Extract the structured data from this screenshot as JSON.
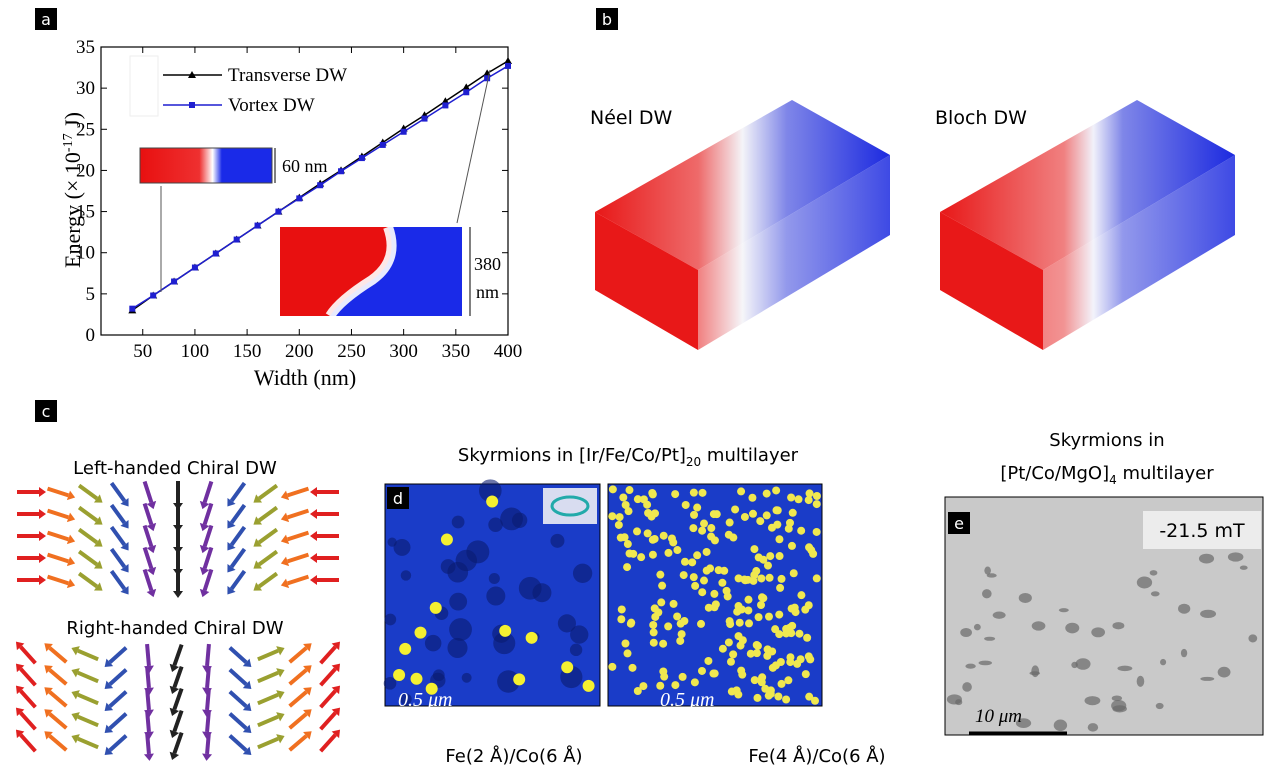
{
  "chart_data": {
    "type": "line",
    "panel_label": "a",
    "xlabel": "Width (nm)",
    "ylabel": [
      "Energy (× 10",
      "-17",
      " J)"
    ],
    "x": [
      40,
      60,
      80,
      100,
      120,
      140,
      160,
      180,
      200,
      220,
      240,
      260,
      280,
      300,
      320,
      340,
      360,
      380,
      400
    ],
    "series": [
      {
        "name": "Transverse DW",
        "color": "#000000",
        "marker": "triangle",
        "values": [
          3.0,
          4.8,
          6.5,
          8.2,
          9.9,
          11.6,
          13.3,
          15.0,
          16.7,
          18.4,
          20.0,
          21.7,
          23.4,
          25.1,
          26.7,
          28.4,
          30.1,
          31.8,
          33.3
        ]
      },
      {
        "name": "Vortex DW",
        "color": "#1f1fd0",
        "marker": "square",
        "values": [
          3.2,
          4.8,
          6.5,
          8.2,
          9.9,
          11.6,
          13.3,
          15.0,
          16.6,
          18.2,
          19.9,
          21.5,
          23.1,
          24.7,
          26.3,
          27.9,
          29.5,
          31.2,
          32.7
        ]
      }
    ],
    "xlim": [
      10,
      400
    ],
    "xticks": [
      50,
      100,
      150,
      200,
      250,
      300,
      350,
      400
    ],
    "ylim": [
      0,
      35
    ],
    "yticks": [
      0,
      5,
      10,
      15,
      20,
      25,
      30,
      35
    ],
    "annotations": [
      "60 nm",
      "380",
      "nm"
    ]
  },
  "panels": {
    "b": {
      "label": "b",
      "titles": [
        "Néel DW",
        "Bloch DW"
      ]
    },
    "c": {
      "label": "c",
      "titles": [
        "Left-handed Chiral DW",
        "Right-handed Chiral DW"
      ]
    },
    "d": {
      "label": "d",
      "title": [
        "Skyrmions in [Ir/Fe/Co/Pt]",
        "20",
        " multilayer"
      ],
      "scale_bars": [
        "0.5 μm",
        "0.5 μm"
      ],
      "captions": [
        "Fe(2 Å)/Co(6 Å)",
        "Fe(4 Å)/Co(6 Å)"
      ]
    },
    "e": {
      "label": "e",
      "title": [
        "Skyrmions in",
        "[Pt/Co/MgO]",
        "4",
        " multilayer"
      ],
      "field": "-21.5 mT",
      "scale_bar": "10 μm"
    }
  }
}
